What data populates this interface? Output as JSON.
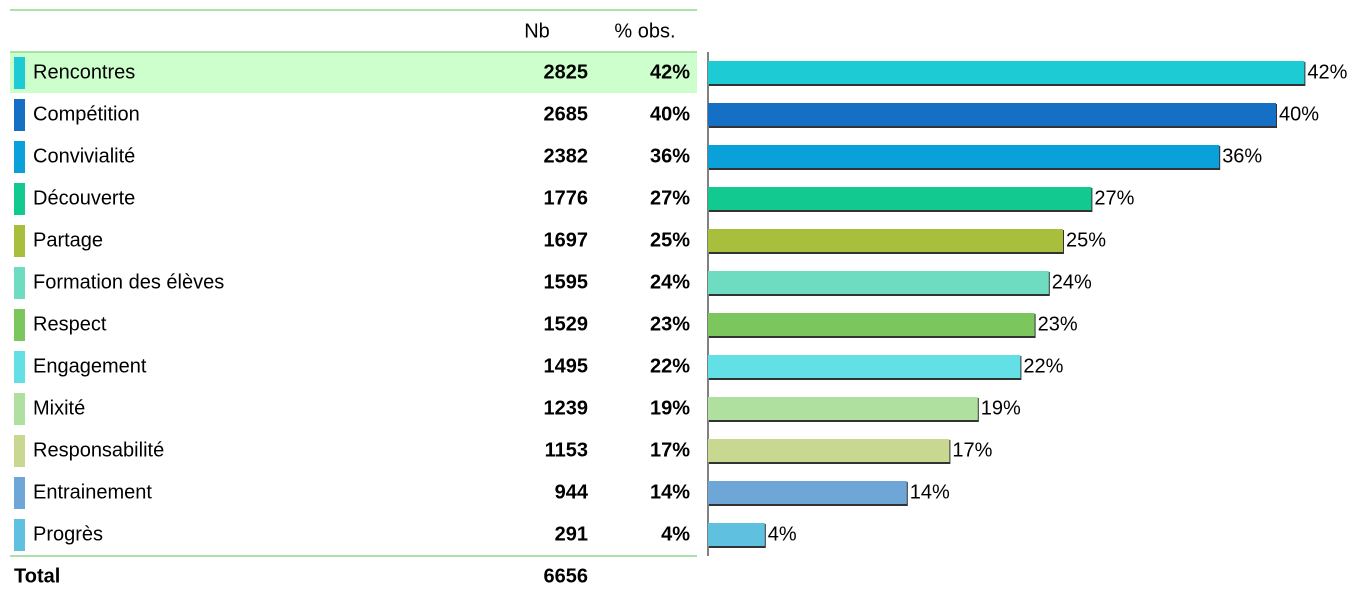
{
  "chart_data": {
    "type": "bar",
    "columns": [
      "Nb",
      "% obs."
    ],
    "categories": [
      "Rencontres",
      "Compétition",
      "Convivialité",
      "Découverte",
      "Partage",
      "Formation des élèves",
      "Respect",
      "Engagement",
      "Mixité",
      "Responsabilité",
      "Entrainement",
      "Progrès"
    ],
    "counts": [
      2825,
      2685,
      2382,
      1776,
      1697,
      1595,
      1529,
      1495,
      1239,
      1153,
      944,
      291
    ],
    "values": [
      42,
      40,
      36,
      27,
      25,
      24,
      23,
      22,
      19,
      17,
      14,
      4
    ],
    "value_labels": [
      "42%",
      "40%",
      "36%",
      "27%",
      "25%",
      "24%",
      "23%",
      "22%",
      "19%",
      "17%",
      "14%",
      "4%"
    ],
    "colors": [
      "#1ccbd3",
      "#1570c5",
      "#0aa0da",
      "#12c98f",
      "#a8bf3e",
      "#6edcc0",
      "#7cc75d",
      "#62e0e6",
      "#b0e0a0",
      "#c8d890",
      "#6ea6d8",
      "#5fc0e0"
    ],
    "total_label": "Total",
    "total": 6656
  }
}
